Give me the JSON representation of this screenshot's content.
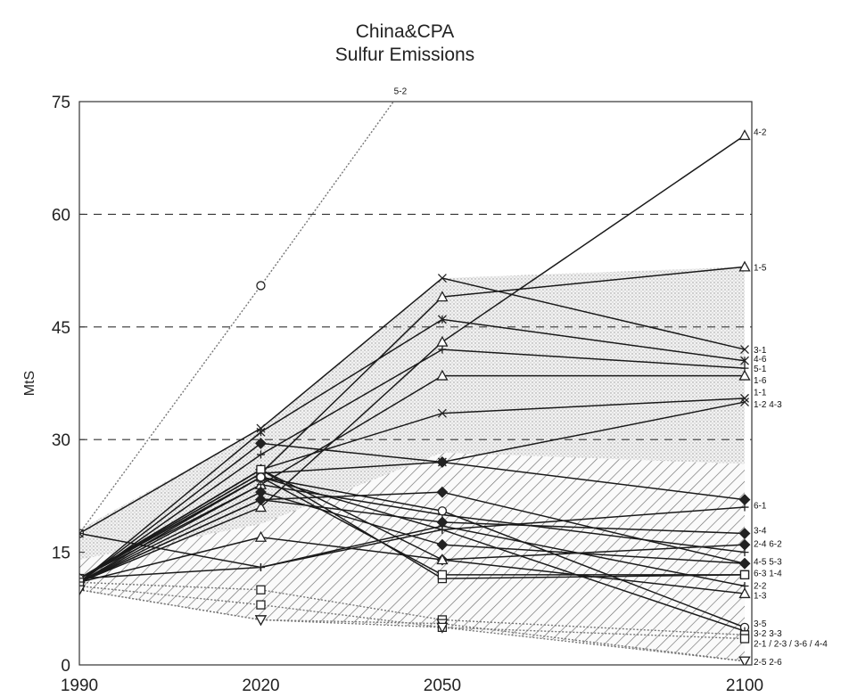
{
  "chart_data": {
    "type": "line",
    "title": "China&CPA",
    "subtitle": "Sulfur Emissions",
    "xlabel": "",
    "ylabel": "MtS",
    "x": [
      1990,
      2020,
      2050,
      2100
    ],
    "x_tick_labels": [
      "1990",
      "2020",
      "2050",
      "2100"
    ],
    "y_ticks": [
      0,
      15,
      30,
      45,
      60,
      75
    ],
    "y_tick_labels": [
      "0",
      "15",
      "30",
      "45",
      "60",
      "75"
    ],
    "ylim": [
      0,
      75
    ],
    "dashed_gridlines_at": [
      30,
      45,
      60
    ],
    "legend": "none",
    "shaded_range": {
      "upper_dotted": [
        18.0,
        31.5,
        51.5,
        53.0
      ],
      "lower_hatched": [
        10.0,
        6.0,
        5.0,
        0.5
      ]
    },
    "series": [
      {
        "name": "5-2",
        "values": [
          17.5,
          50.5,
          84.0,
          null
        ],
        "style": "dotted",
        "marker": "o"
      },
      {
        "name": "4-2",
        "values": [
          11.0,
          21.0,
          43.0,
          70.5
        ],
        "style": "solid",
        "marker": "^"
      },
      {
        "name": "1-5",
        "values": [
          11.5,
          25.5,
          49.0,
          53.0
        ],
        "style": "solid",
        "marker": "^"
      },
      {
        "name": "3-1",
        "values": [
          17.5,
          31.5,
          51.5,
          42.0
        ],
        "style": "solid",
        "marker": "x"
      },
      {
        "name": "4-6",
        "values": [
          11.0,
          31.0,
          46.0,
          40.5
        ],
        "style": "solid",
        "marker": "*"
      },
      {
        "name": "5-1",
        "values": [
          11.0,
          28.0,
          42.0,
          39.5
        ],
        "style": "solid",
        "marker": "+"
      },
      {
        "name": "1-6",
        "values": [
          11.5,
          24.0,
          38.5,
          38.5
        ],
        "style": "solid",
        "marker": "^"
      },
      {
        "name": "1-1",
        "values": [
          11.5,
          26.0,
          33.5,
          35.5
        ],
        "style": "solid",
        "marker": "x"
      },
      {
        "name": "1-2",
        "values": [
          11.5,
          25.5,
          27.0,
          35.0
        ],
        "style": "solid",
        "marker": "x"
      },
      {
        "name": "4-3",
        "values": [
          11.0,
          29.5,
          27.0,
          22.0
        ],
        "style": "solid",
        "marker": "diamond"
      },
      {
        "name": "6-1",
        "values": [
          11.0,
          25.0,
          18.0,
          21.0
        ],
        "style": "solid",
        "marker": "+"
      },
      {
        "name": "3-4",
        "values": [
          11.0,
          22.0,
          19.0,
          17.5
        ],
        "style": "solid",
        "marker": "diamond"
      },
      {
        "name": "2-4",
        "values": [
          11.5,
          26.0,
          14.0,
          16.0
        ],
        "style": "solid",
        "marker": "diamond"
      },
      {
        "name": "6-2",
        "values": [
          11.0,
          24.0,
          20.0,
          15.0
        ],
        "style": "solid",
        "marker": "+"
      },
      {
        "name": "4-5",
        "values": [
          11.0,
          22.0,
          23.0,
          13.5
        ],
        "style": "solid",
        "marker": "diamond"
      },
      {
        "name": "5-3",
        "values": [
          11.0,
          23.0,
          16.0,
          13.5
        ],
        "style": "solid",
        "marker": "diamond"
      },
      {
        "name": "6-3",
        "values": [
          11.5,
          26.0,
          11.5,
          12.0
        ],
        "style": "solid",
        "marker": "square"
      },
      {
        "name": "1-4",
        "values": [
          11.5,
          25.0,
          12.0,
          12.0
        ],
        "style": "solid",
        "marker": "square"
      },
      {
        "name": "2-2",
        "values": [
          11.5,
          13.0,
          18.5,
          10.5
        ],
        "style": "solid",
        "marker": "+"
      },
      {
        "name": "1-3",
        "values": [
          11.0,
          17.0,
          14.0,
          9.5
        ],
        "style": "solid",
        "marker": "^"
      },
      {
        "name": "3-5",
        "values": [
          11.5,
          25.0,
          20.5,
          5.0
        ],
        "style": "solid",
        "marker": "o"
      },
      {
        "name": "3-2",
        "values": [
          17.5,
          13.0,
          18.0,
          4.5
        ],
        "style": "solid",
        "marker": "+"
      },
      {
        "name": "3-3",
        "values": [
          11.0,
          10.0,
          6.0,
          4.0
        ],
        "style": "dotted",
        "marker": "square"
      },
      {
        "name": "2-1 / 2-3 / 3-6 / 4-4",
        "values": [
          10.5,
          8.0,
          5.0,
          3.5
        ],
        "style": "dotted",
        "marker": "square"
      },
      {
        "name": "2-5",
        "values": [
          10.0,
          6.0,
          5.5,
          0.5
        ],
        "style": "dotted",
        "marker": "triangle-down"
      },
      {
        "name": "2-6",
        "values": [
          10.0,
          6.0,
          5.0,
          0.5
        ],
        "style": "dotted",
        "marker": "triangle-down"
      }
    ],
    "series_label_text": [
      {
        "text": "5-2",
        "anchor_year": 2050,
        "anchor_value": 76.5
      },
      {
        "text": "4-2",
        "anchor_year": 2100,
        "anchor_value": 71.0
      },
      {
        "text": "1-5",
        "anchor_year": 2100,
        "anchor_value": 53.0
      },
      {
        "text": "3-1",
        "anchor_year": 2100,
        "anchor_value": 42.0
      },
      {
        "text": "4-6",
        "anchor_year": 2100,
        "anchor_value": 40.8
      },
      {
        "text": "5-1",
        "anchor_year": 2100,
        "anchor_value": 39.5
      },
      {
        "text": "1-6",
        "anchor_year": 2100,
        "anchor_value": 38.0
      },
      {
        "text": "1-1",
        "anchor_year": 2100,
        "anchor_value": 36.4
      },
      {
        "text": "1-2  4-3",
        "anchor_year": 2100,
        "anchor_value": 34.8
      },
      {
        "text": "6-1",
        "anchor_year": 2100,
        "anchor_value": 21.3
      },
      {
        "text": "3-4",
        "anchor_year": 2100,
        "anchor_value": 18.0
      },
      {
        "text": "2-4   6-2",
        "anchor_year": 2100,
        "anchor_value": 16.2
      },
      {
        "text": "4-5   5-3",
        "anchor_year": 2100,
        "anchor_value": 13.8
      },
      {
        "text": "6-3   1-4",
        "anchor_year": 2100,
        "anchor_value": 12.3
      },
      {
        "text": "2-2",
        "anchor_year": 2100,
        "anchor_value": 10.6
      },
      {
        "text": "1-3",
        "anchor_year": 2100,
        "anchor_value": 9.3
      },
      {
        "text": "3-5",
        "anchor_year": 2100,
        "anchor_value": 5.6
      },
      {
        "text": "3-2   3-3",
        "anchor_year": 2100,
        "anchor_value": 4.3
      },
      {
        "text": "2-1 / 2-3 / 3-6 / 4-4",
        "anchor_year": 2100,
        "anchor_value": 2.9
      },
      {
        "text": "2-5   2-6",
        "anchor_year": 2100,
        "anchor_value": 0.5
      }
    ]
  }
}
